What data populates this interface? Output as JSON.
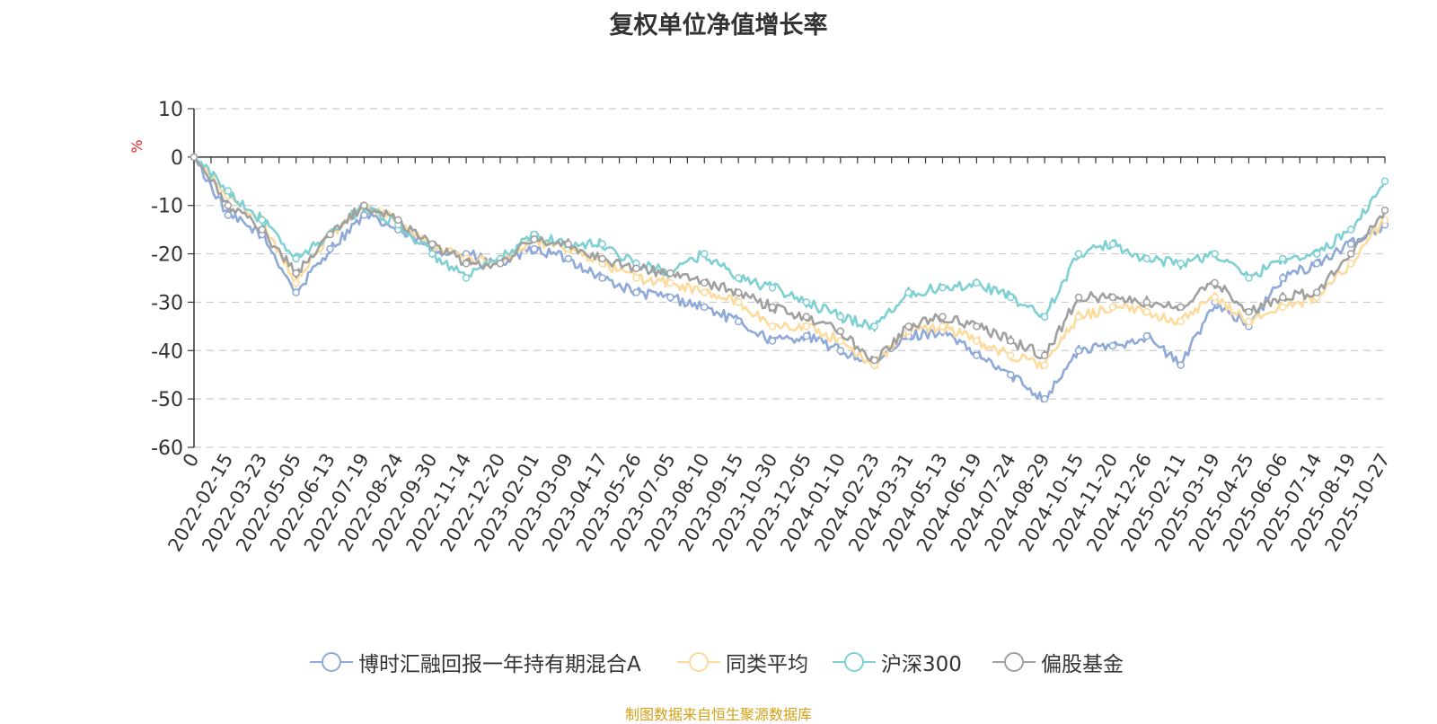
{
  "chart_data": {
    "type": "line",
    "title": "复权单位净值增长率",
    "ylabel": "%",
    "xlabel": "",
    "ylim": [
      -60,
      10
    ],
    "yticks": [
      10,
      0,
      -10,
      -20,
      -30,
      -40,
      -50,
      -60
    ],
    "grid": true,
    "legend_position": "bottom",
    "categories": [
      "0",
      "2022-02-15",
      "2022-03-23",
      "2022-05-05",
      "2022-06-13",
      "2022-07-19",
      "2022-08-24",
      "2022-09-30",
      "2022-11-14",
      "2022-12-20",
      "2023-02-01",
      "2023-03-09",
      "2023-04-17",
      "2023-05-26",
      "2023-07-05",
      "2023-08-10",
      "2023-09-15",
      "2023-10-30",
      "2023-12-05",
      "2024-01-10",
      "2024-02-23",
      "2024-03-31",
      "2024-05-13",
      "2024-06-19",
      "2024-07-24",
      "2024-08-29",
      "2024-10-15",
      "2024-11-20",
      "2024-12-26",
      "2025-02-11",
      "2025-03-19",
      "2025-04-25",
      "2025-06-06",
      "2025-07-14",
      "2025-08-19",
      "2025-10-27"
    ],
    "series": [
      {
        "name": "博时汇融回报一年持有期混合A",
        "color": "#8fa9d9",
        "values": [
          0,
          -12,
          -16,
          -28,
          -19,
          -12,
          -15,
          -19,
          -20,
          -22,
          -19,
          -21,
          -25,
          -28,
          -29,
          -31,
          -34,
          -38,
          -37,
          -40,
          -43,
          -37,
          -36,
          -41,
          -45,
          -50,
          -40,
          -39,
          -37,
          -43,
          -30,
          -35,
          -25,
          -22,
          -18,
          -14
        ]
      },
      {
        "name": "同类平均",
        "color": "#fddb9c",
        "values": [
          0,
          -8,
          -13,
          -26,
          -16,
          -10,
          -13,
          -18,
          -21,
          -22,
          -17,
          -19,
          -22,
          -25,
          -26,
          -28,
          -30,
          -35,
          -35,
          -38,
          -43,
          -36,
          -35,
          -38,
          -41,
          -43,
          -33,
          -31,
          -32,
          -34,
          -29,
          -34,
          -31,
          -29,
          -22,
          -13
        ]
      },
      {
        "name": "沪深300",
        "color": "#7fd0d3",
        "values": [
          0,
          -7,
          -13,
          -21,
          -16,
          -10,
          -14,
          -20,
          -25,
          -21,
          -16,
          -18,
          -18,
          -22,
          -24,
          -20,
          -25,
          -27,
          -30,
          -33,
          -35,
          -28,
          -27,
          -26,
          -29,
          -33,
          -20,
          -18,
          -21,
          -22,
          -20,
          -25,
          -21,
          -20,
          -15,
          -5
        ]
      },
      {
        "name": "偏股基金",
        "color": "#a0a0a0",
        "values": [
          0,
          -10,
          -15,
          -24,
          -16,
          -10,
          -13,
          -18,
          -22,
          -22,
          -17,
          -18,
          -21,
          -23,
          -24,
          -26,
          -28,
          -31,
          -33,
          -36,
          -42,
          -35,
          -33,
          -35,
          -38,
          -41,
          -29,
          -29,
          -30,
          -31,
          -26,
          -32,
          -29,
          -28,
          -20,
          -11
        ]
      }
    ]
  },
  "source": "制图数据来自恒生聚源数据库"
}
